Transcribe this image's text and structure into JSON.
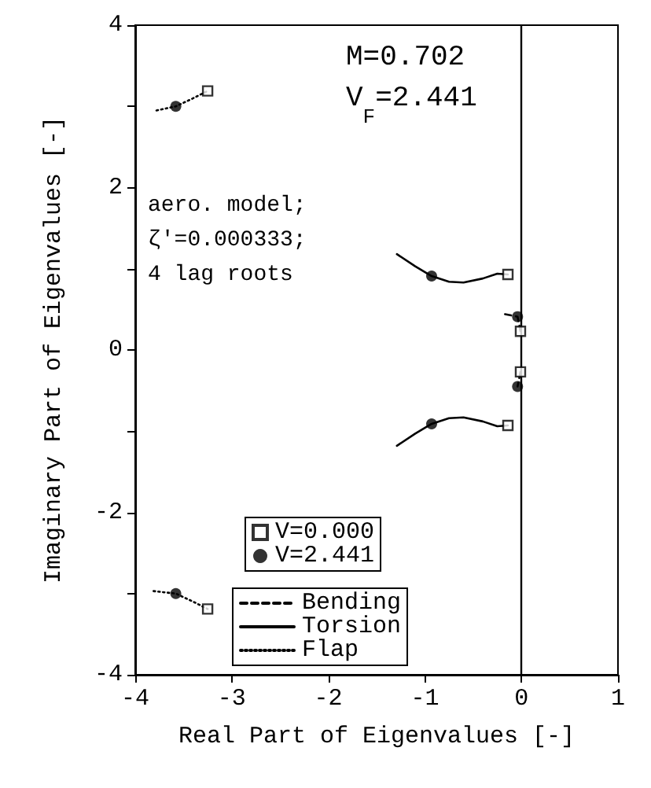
{
  "chart_data": {
    "type": "line",
    "xlabel": "Real Part of Eigenvalues [-]",
    "ylabel": "Imaginary Part of Eigenvalues [-]",
    "annotations": [
      "M=0.702",
      "V$_{F}$=2.441",
      "aero. model;",
      "ζ′=0.000333;",
      "4 lag roots"
    ],
    "xlim": [
      -4,
      1
    ],
    "xticks": [
      -4,
      -3,
      -2,
      -1,
      0,
      1
    ],
    "ylim": [
      -4,
      4
    ],
    "yticks": [
      -4,
      -2,
      0,
      2,
      4
    ],
    "ref_lines": [
      {
        "axis": "x",
        "value": 0,
        "color": "#000000",
        "line_style": "solid"
      }
    ],
    "grid": false,
    "legend": "bottom",
    "series": [
      {
        "name": "V=0.000",
        "type": "scatter",
        "marker": "square",
        "color": "#000000",
        "x": [
          -3.25,
          -3.25,
          -0.14,
          -0.14,
          -0.01,
          -0.01
        ],
        "values": [
          3.19,
          -3.19,
          0.93,
          -0.93,
          0.23,
          -0.27
        ]
      },
      {
        "name": "V=2.441",
        "type": "scatter",
        "marker": "circle",
        "color": "#000000",
        "x": [
          -3.58,
          -3.58,
          -0.93,
          -0.93,
          -0.04,
          -0.04
        ],
        "values": [
          3.0,
          -3.0,
          0.91,
          -0.91,
          0.41,
          -0.45
        ]
      },
      {
        "name": "Bending",
        "type": "line",
        "marker": "none",
        "line_style": "dashed",
        "color": "#000000",
        "x": [
          -0.17,
          -0.04,
          -0.01,
          null,
          -0.01,
          -0.04
        ],
        "values": [
          0.44,
          0.41,
          0.23,
          null,
          -0.27,
          -0.45
        ]
      },
      {
        "name": "Torsion",
        "type": "line",
        "marker": "none",
        "line_style": "solid",
        "color": "#000000",
        "x": [
          -1.29,
          -1.1,
          -0.93,
          -0.75,
          -0.6,
          -0.4,
          -0.25,
          -0.14,
          null,
          -1.29,
          -1.1,
          -0.93,
          -0.75,
          -0.6,
          -0.4,
          -0.25,
          -0.14
        ],
        "values": [
          1.18,
          1.03,
          0.91,
          0.84,
          0.83,
          0.88,
          0.94,
          0.93,
          null,
          -1.18,
          -1.03,
          -0.91,
          -0.84,
          -0.83,
          -0.88,
          -0.94,
          -0.93
        ]
      },
      {
        "name": "Flap",
        "type": "line",
        "marker": "none",
        "line_style": "dotted",
        "color": "#000000",
        "x": [
          -3.78,
          -3.58,
          -3.4,
          -3.25,
          null,
          -3.81,
          -3.58,
          -3.4,
          -3.25
        ],
        "values": [
          2.95,
          3.0,
          3.1,
          3.19,
          null,
          -2.97,
          -3.0,
          -3.1,
          -3.19
        ]
      }
    ]
  }
}
